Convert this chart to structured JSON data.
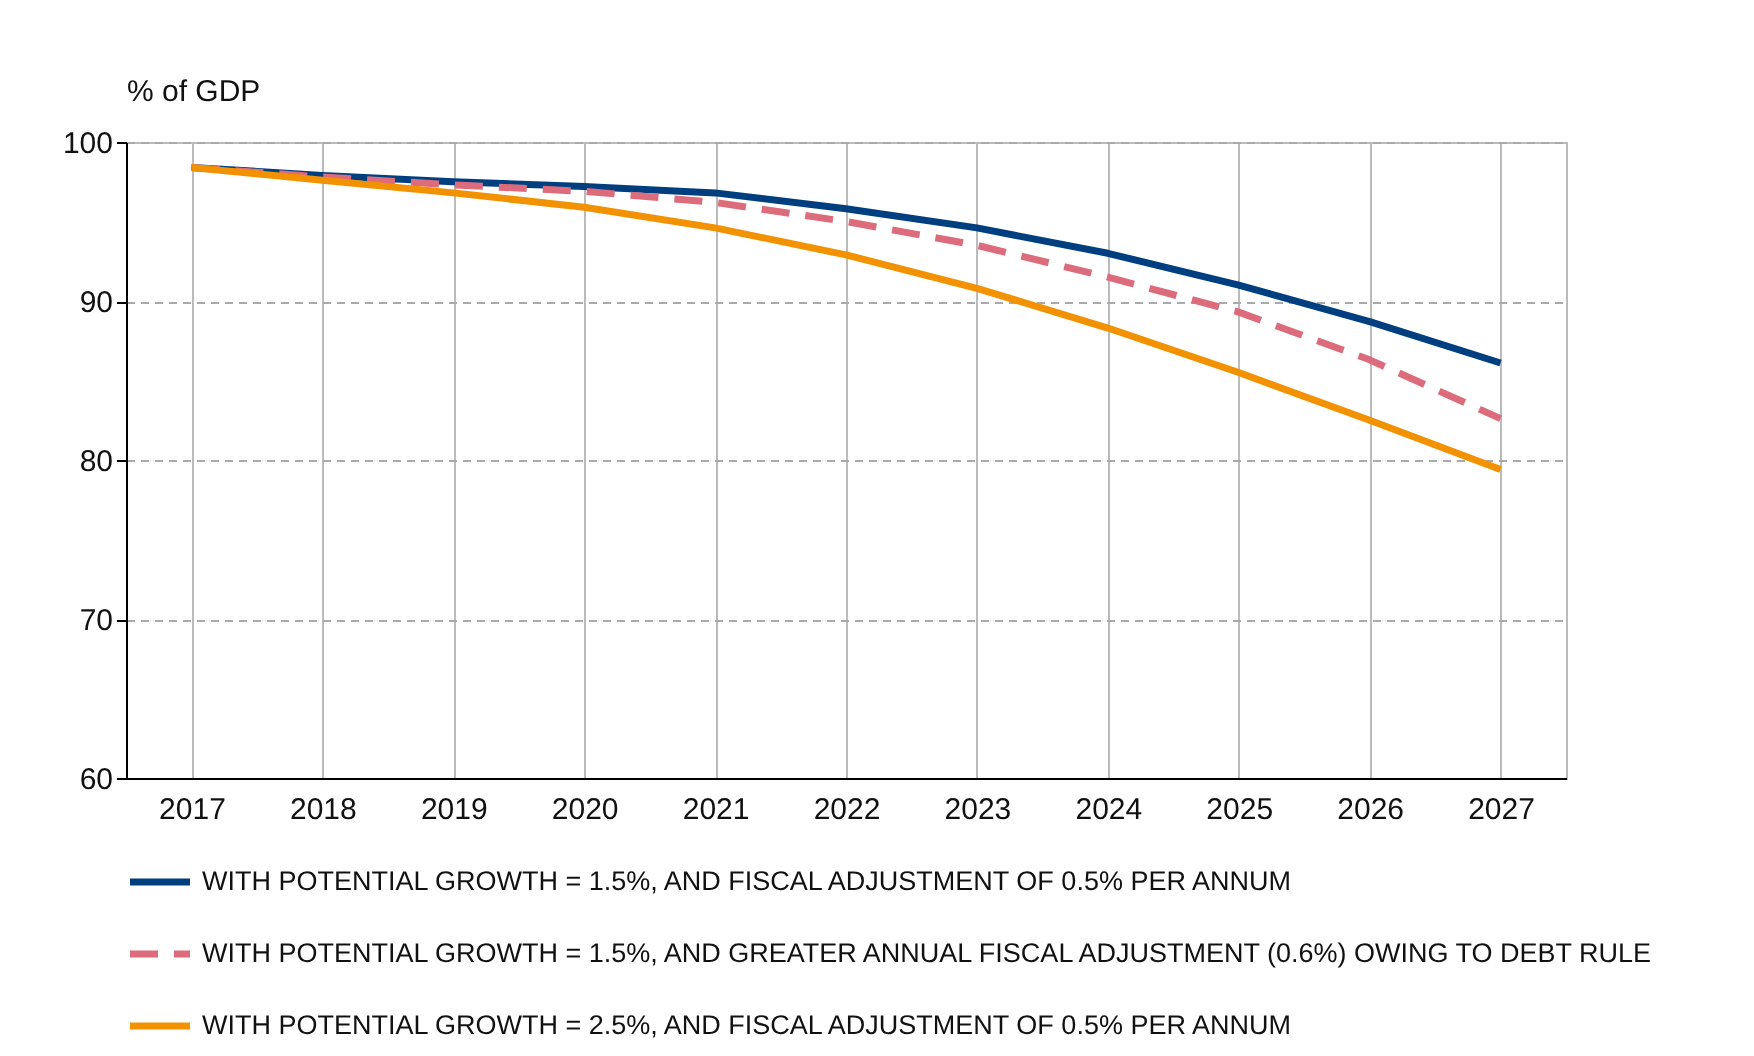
{
  "chart_data": {
    "type": "line",
    "ylabel": "% of GDP",
    "categories": [
      "2017",
      "2018",
      "2019",
      "2020",
      "2021",
      "2022",
      "2023",
      "2024",
      "2025",
      "2026",
      "2027"
    ],
    "series": [
      {
        "name": "WITH POTENTIAL GROWTH = 1.5%, AND FISCAL ADJUSTMENT OF 0.5% PER ANNUM",
        "color": "#003f7f",
        "line_style": "solid",
        "values": [
          98.4,
          97.9,
          97.5,
          97.2,
          96.8,
          95.8,
          94.6,
          93.0,
          91.0,
          88.7,
          86.1
        ]
      },
      {
        "name": "WITH POTENTIAL GROWTH = 1.5%, AND GREATER ANNUAL FISCAL ADJUSTMENT (0.6%) OWING TO DEBT RULE",
        "color": "#dc6b7c",
        "line_style": "dashed",
        "values": [
          98.4,
          97.8,
          97.3,
          96.9,
          96.2,
          95.0,
          93.5,
          91.5,
          89.3,
          86.3,
          82.6
        ]
      },
      {
        "name": "WITH POTENTIAL GROWTH = 2.5%, AND FISCAL ADJUSTMENT OF 0.5% PER ANNUM",
        "color": "#f39200",
        "line_style": "solid",
        "values": [
          98.4,
          97.6,
          96.8,
          95.9,
          94.6,
          92.9,
          90.8,
          88.3,
          85.5,
          82.5,
          79.4
        ]
      }
    ],
    "ylim": [
      60,
      100
    ],
    "yticks": [
      60,
      70,
      80,
      90,
      100
    ],
    "grid": true,
    "legend": "bottom"
  }
}
